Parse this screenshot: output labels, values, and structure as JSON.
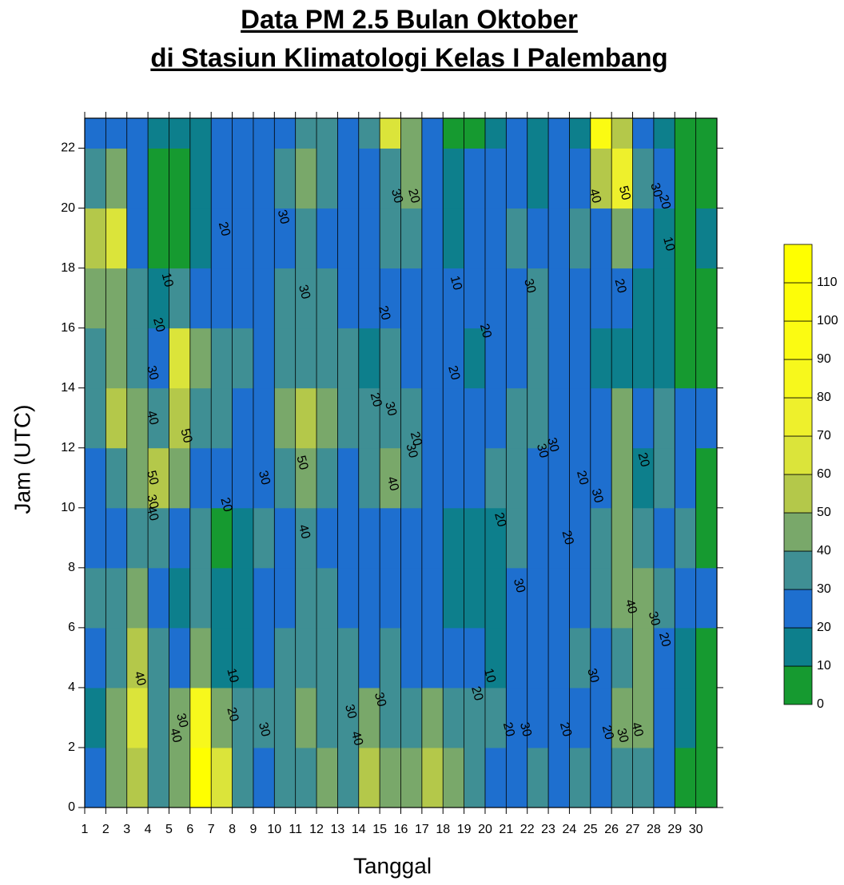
{
  "chart_data": {
    "type": "contour",
    "title": [
      "Data PM 2.5 Bulan Oktober",
      "di Stasiun Klimatologi Kelas I Palembang"
    ],
    "x_label": "Tanggal",
    "y_label": "Jam (UTC)",
    "x": [
      1,
      2,
      3,
      4,
      5,
      6,
      7,
      8,
      9,
      10,
      11,
      12,
      13,
      14,
      15,
      16,
      17,
      18,
      19,
      20,
      21,
      22,
      23,
      24,
      25,
      26,
      27,
      28,
      29,
      30
    ],
    "y": [
      0,
      2,
      4,
      6,
      8,
      10,
      12,
      14,
      16,
      18,
      20,
      22
    ],
    "z": [
      [
        25,
        15,
        25,
        30,
        25,
        25,
        35,
        30,
        45,
        50,
        30,
        25
      ],
      [
        45,
        45,
        35,
        30,
        25,
        35,
        55,
        45,
        40,
        60,
        40,
        25
      ],
      [
        50,
        62,
        50,
        40,
        35,
        45,
        45,
        35,
        30,
        25,
        25,
        25
      ],
      [
        30,
        35,
        30,
        25,
        30,
        55,
        35,
        25,
        15,
        5,
        5,
        15
      ],
      [
        45,
        40,
        25,
        15,
        20,
        40,
        50,
        60,
        35,
        5,
        5,
        15
      ],
      [
        110,
        85,
        40,
        35,
        30,
        25,
        35,
        40,
        25,
        15,
        15,
        15
      ],
      [
        60,
        40,
        15,
        10,
        5,
        20,
        35,
        30,
        25,
        25,
        25,
        25
      ],
      [
        30,
        35,
        15,
        10,
        10,
        20,
        25,
        30,
        25,
        25,
        25,
        20
      ],
      [
        25,
        30,
        25,
        25,
        30,
        25,
        25,
        25,
        25,
        25,
        25,
        25
      ],
      [
        30,
        35,
        30,
        25,
        25,
        35,
        40,
        35,
        35,
        25,
        30,
        25
      ],
      [
        35,
        40,
        35,
        30,
        35,
        45,
        55,
        35,
        35,
        30,
        40,
        35
      ],
      [
        40,
        35,
        30,
        30,
        25,
        35,
        40,
        35,
        30,
        25,
        30,
        30
      ],
      [
        35,
        35,
        30,
        25,
        25,
        25,
        30,
        30,
        25,
        25,
        25,
        25
      ],
      [
        55,
        40,
        25,
        25,
        25,
        30,
        30,
        15,
        25,
        25,
        25,
        30
      ],
      [
        40,
        35,
        35,
        25,
        25,
        45,
        30,
        35,
        25,
        35,
        35,
        60
      ],
      [
        40,
        35,
        25,
        25,
        25,
        35,
        30,
        25,
        25,
        30,
        40,
        40
      ],
      [
        55,
        45,
        25,
        25,
        25,
        25,
        20,
        25,
        25,
        25,
        25,
        20
      ],
      [
        40,
        35,
        25,
        15,
        10,
        25,
        25,
        20,
        25,
        10,
        15,
        5
      ],
      [
        35,
        35,
        25,
        10,
        10,
        25,
        25,
        15,
        25,
        25,
        20,
        5
      ],
      [
        25,
        30,
        10,
        10,
        15,
        35,
        25,
        20,
        25,
        25,
        25,
        15
      ],
      [
        25,
        25,
        25,
        25,
        30,
        35,
        30,
        25,
        25,
        35,
        20,
        20
      ],
      [
        30,
        25,
        25,
        25,
        25,
        25,
        35,
        30,
        30,
        25,
        15,
        15
      ],
      [
        25,
        20,
        25,
        25,
        20,
        25,
        25,
        25,
        25,
        25,
        25,
        20
      ],
      [
        30,
        25,
        35,
        25,
        25,
        25,
        25,
        25,
        20,
        30,
        20,
        15
      ],
      [
        25,
        25,
        20,
        30,
        35,
        25,
        25,
        15,
        20,
        20,
        50,
        90
      ],
      [
        35,
        40,
        30,
        40,
        40,
        45,
        45,
        15,
        25,
        40,
        70,
        50
      ],
      [
        35,
        45,
        40,
        45,
        35,
        15,
        25,
        15,
        15,
        25,
        30,
        25
      ],
      [
        25,
        25,
        25,
        35,
        25,
        35,
        30,
        15,
        15,
        15,
        20,
        15
      ],
      [
        5,
        10,
        10,
        20,
        30,
        25,
        25,
        5,
        5,
        5,
        5,
        5
      ],
      [
        5,
        5,
        5,
        20,
        5,
        5,
        20,
        5,
        5,
        10,
        5,
        5
      ]
    ],
    "levels": [
      0,
      10,
      20,
      30,
      40,
      50,
      60,
      70,
      80,
      90,
      100,
      110,
      120
    ],
    "colors": [
      "#169a30",
      "#0d7f8c",
      "#1e6fcf",
      "#3f8f94",
      "#79a86a",
      "#b4c84a",
      "#dbe43a",
      "#eef02c",
      "#f7f81c",
      "#fbfb12",
      "#fdfd08",
      "#ffff00"
    ],
    "xlim": [
      1,
      31
    ],
    "ylim": [
      0,
      23
    ],
    "xticks": [
      1,
      2,
      3,
      4,
      5,
      6,
      7,
      8,
      9,
      10,
      11,
      12,
      13,
      14,
      15,
      16,
      17,
      18,
      19,
      20,
      21,
      22,
      23,
      24,
      25,
      26,
      27,
      28,
      29,
      30
    ],
    "yticks": [
      0,
      2,
      4,
      6,
      8,
      10,
      12,
      14,
      16,
      18,
      20,
      22
    ],
    "colorbar_ticks": [
      0,
      10,
      20,
      30,
      40,
      50,
      60,
      70,
      80,
      90,
      100,
      110
    ],
    "contour_labels": [
      {
        "x": 3.6,
        "y": 4.3,
        "value": 40
      },
      {
        "x": 4.2,
        "y": 9.8,
        "value": 40
      },
      {
        "x": 4.2,
        "y": 11,
        "value": 50
      },
      {
        "x": 4.2,
        "y": 10.2,
        "value": 30
      },
      {
        "x": 4.2,
        "y": 13,
        "value": 40
      },
      {
        "x": 4.2,
        "y": 14.5,
        "value": 30
      },
      {
        "x": 4.5,
        "y": 16.1,
        "value": 20
      },
      {
        "x": 4.9,
        "y": 17.6,
        "value": 10
      },
      {
        "x": 5.8,
        "y": 12.4,
        "value": 50
      },
      {
        "x": 5.3,
        "y": 2.4,
        "value": 40
      },
      {
        "x": 5.6,
        "y": 2.9,
        "value": 30
      },
      {
        "x": 7.7,
        "y": 10.1,
        "value": 20
      },
      {
        "x": 8,
        "y": 4.4,
        "value": 10
      },
      {
        "x": 8,
        "y": 3.1,
        "value": 20
      },
      {
        "x": 7.6,
        "y": 19.3,
        "value": 20
      },
      {
        "x": 9.5,
        "y": 2.6,
        "value": 30
      },
      {
        "x": 9.5,
        "y": 11,
        "value": 30
      },
      {
        "x": 10.4,
        "y": 19.7,
        "value": 30
      },
      {
        "x": 11.3,
        "y": 11.5,
        "value": 50
      },
      {
        "x": 11.4,
        "y": 9.2,
        "value": 40
      },
      {
        "x": 11.4,
        "y": 17.2,
        "value": 30
      },
      {
        "x": 13.6,
        "y": 3.2,
        "value": 30
      },
      {
        "x": 13.9,
        "y": 2.3,
        "value": 40
      },
      {
        "x": 15,
        "y": 3.6,
        "value": 30
      },
      {
        "x": 14.8,
        "y": 13.6,
        "value": 20
      },
      {
        "x": 15.5,
        "y": 13.3,
        "value": 30
      },
      {
        "x": 15.2,
        "y": 16.5,
        "value": 20
      },
      {
        "x": 15.6,
        "y": 10.8,
        "value": 40
      },
      {
        "x": 16.5,
        "y": 11.9,
        "value": 30
      },
      {
        "x": 16.7,
        "y": 12.3,
        "value": 20
      },
      {
        "x": 15.8,
        "y": 20.4,
        "value": 30
      },
      {
        "x": 16.6,
        "y": 20.4,
        "value": 20
      },
      {
        "x": 18.6,
        "y": 17.5,
        "value": 10
      },
      {
        "x": 18.5,
        "y": 14.5,
        "value": 20
      },
      {
        "x": 19.6,
        "y": 3.8,
        "value": 20
      },
      {
        "x": 20,
        "y": 15.9,
        "value": 20
      },
      {
        "x": 20.2,
        "y": 4.4,
        "value": 10
      },
      {
        "x": 20.7,
        "y": 9.6,
        "value": 20
      },
      {
        "x": 21.6,
        "y": 7.4,
        "value": 30
      },
      {
        "x": 21.1,
        "y": 2.6,
        "value": 20
      },
      {
        "x": 21.9,
        "y": 2.6,
        "value": 30
      },
      {
        "x": 22.1,
        "y": 17.4,
        "value": 30
      },
      {
        "x": 22.7,
        "y": 11.9,
        "value": 30
      },
      {
        "x": 23.2,
        "y": 12.1,
        "value": 30
      },
      {
        "x": 23.9,
        "y": 9,
        "value": 20
      },
      {
        "x": 24.6,
        "y": 11,
        "value": 20
      },
      {
        "x": 23.8,
        "y": 2.6,
        "value": 20
      },
      {
        "x": 25.1,
        "y": 4.4,
        "value": 30
      },
      {
        "x": 25.2,
        "y": 20.4,
        "value": 40
      },
      {
        "x": 25.3,
        "y": 10.4,
        "value": 30
      },
      {
        "x": 26.4,
        "y": 17.4,
        "value": 20
      },
      {
        "x": 25.8,
        "y": 2.5,
        "value": 20
      },
      {
        "x": 26.5,
        "y": 2.4,
        "value": 30
      },
      {
        "x": 27.2,
        "y": 2.6,
        "value": 40
      },
      {
        "x": 26.9,
        "y": 6.7,
        "value": 40
      },
      {
        "x": 27.5,
        "y": 11.6,
        "value": 20
      },
      {
        "x": 28,
        "y": 6.3,
        "value": 30
      },
      {
        "x": 28.5,
        "y": 5.6,
        "value": 20
      },
      {
        "x": 26.6,
        "y": 20.5,
        "value": 50
      },
      {
        "x": 28.1,
        "y": 20.6,
        "value": 30
      },
      {
        "x": 28.5,
        "y": 20.2,
        "value": 20
      },
      {
        "x": 28.7,
        "y": 18.8,
        "value": 10
      }
    ]
  }
}
